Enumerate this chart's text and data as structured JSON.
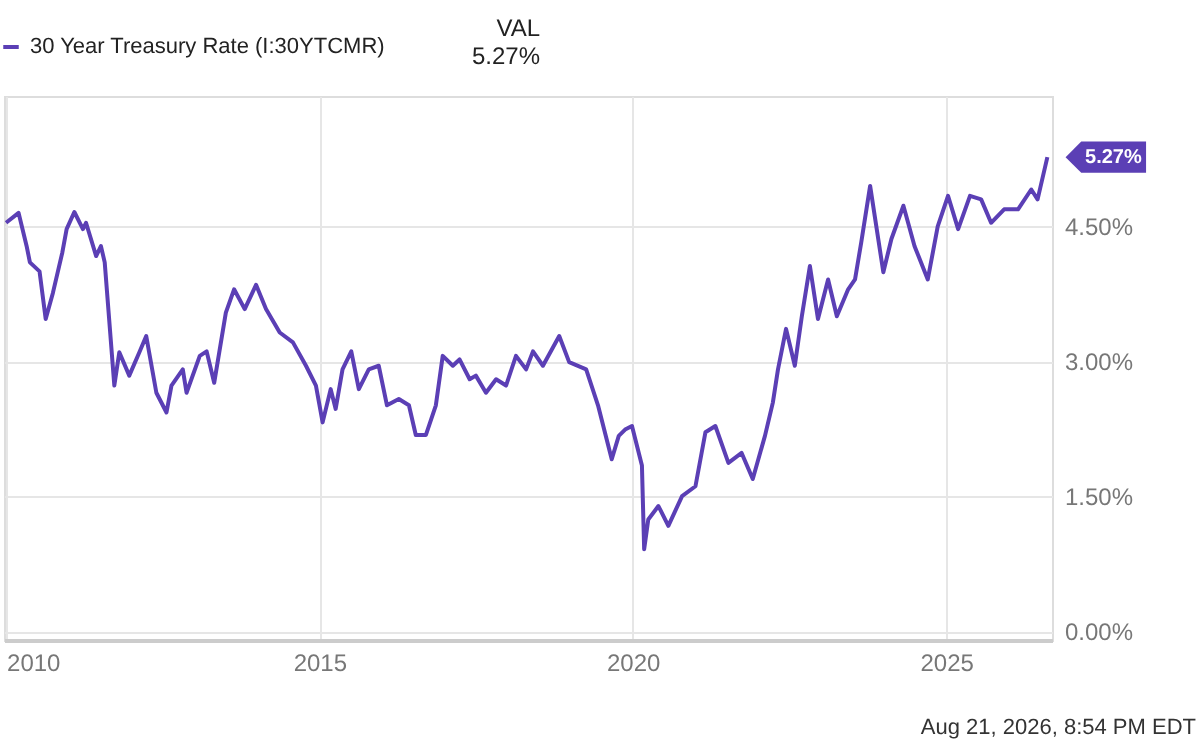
{
  "chart_data": {
    "type": "line",
    "x": [
      "2010-01-01",
      "2010-03-15",
      "2010-05-01",
      "2010-05-20",
      "2010-07-15",
      "2010-08-20",
      "2010-10-01",
      "2010-11-25",
      "2010-12-20",
      "2011-02-03",
      "2011-03-25",
      "2011-04-12",
      "2011-06-10",
      "2011-07-08",
      "2011-07-30",
      "2011-09-24",
      "2011-10-23",
      "2011-12-20",
      "2012-02-17",
      "2012-03-28",
      "2012-05-26",
      "2012-07-24",
      "2012-08-22",
      "2012-10-27",
      "2012-11-18",
      "2013-02-03",
      "2013-03-15",
      "2013-04-28",
      "2013-07-05",
      "2013-08-22",
      "2013-10-23",
      "2013-12-28",
      "2014-02-24",
      "2014-05-15",
      "2014-07-31",
      "2014-10-15",
      "2014-12-12",
      "2015-01-20",
      "2015-03-08",
      "2015-04-06",
      "2015-05-16",
      "2015-07-06",
      "2015-08-19",
      "2015-10-16",
      "2015-12-13",
      "2016-01-30",
      "2016-04-08",
      "2016-06-06",
      "2016-07-16",
      "2016-09-13",
      "2016-11-10",
      "2016-12-20",
      "2017-02-17",
      "2017-03-28",
      "2017-05-26",
      "2017-07-01",
      "2017-08-29",
      "2017-10-27",
      "2017-12-24",
      "2018-02-20",
      "2018-04-20",
      "2018-05-30",
      "2018-07-27",
      "2018-10-30",
      "2018-12-27",
      "2019-04-05",
      "2019-06-13",
      "2019-09-01",
      "2019-10-12",
      "2019-11-18",
      "2019-12-28",
      "2020-02-24",
      "2020-03-08",
      "2020-04-01",
      "2020-05-30",
      "2020-07-27",
      "2020-10-15",
      "2021-01-01",
      "2021-02-28",
      "2021-04-27",
      "2021-07-12",
      "2021-09-27",
      "2021-12-01",
      "2022-02-10",
      "2022-03-28",
      "2022-04-27",
      "2022-06-13",
      "2022-08-03",
      "2022-09-13",
      "2022-10-30",
      "2022-12-16",
      "2023-02-13",
      "2023-04-05",
      "2023-06-10",
      "2023-07-20",
      "2023-08-25",
      "2023-10-16",
      "2024-01-01",
      "2024-02-17",
      "2024-04-27",
      "2024-07-01",
      "2024-09-16",
      "2024-11-13",
      "2025-01-12",
      "2025-03-12",
      "2025-05-20",
      "2025-07-24",
      "2025-09-20",
      "2025-12-05",
      "2026-02-24",
      "2026-05-12",
      "2026-06-18",
      "2026-08-14"
    ],
    "series": [
      {
        "name": "30 Year Treasury Rate (I:30YTCMR)",
        "color": "#5b3fb5",
        "values": [
          4.54,
          4.65,
          4.28,
          4.1,
          4.0,
          3.47,
          3.76,
          4.21,
          4.47,
          4.66,
          4.47,
          4.54,
          4.17,
          4.28,
          4.1,
          2.73,
          3.1,
          2.84,
          3.1,
          3.28,
          2.65,
          2.43,
          2.73,
          2.91,
          2.65,
          3.06,
          3.11,
          2.76,
          3.54,
          3.8,
          3.58,
          3.85,
          3.58,
          3.32,
          3.21,
          2.95,
          2.73,
          2.32,
          2.69,
          2.47,
          2.91,
          3.11,
          2.69,
          2.91,
          2.95,
          2.51,
          2.58,
          2.51,
          2.18,
          2.18,
          2.51,
          3.06,
          2.95,
          3.02,
          2.8,
          2.84,
          2.65,
          2.8,
          2.73,
          3.06,
          2.91,
          3.11,
          2.95,
          3.28,
          2.99,
          2.91,
          2.51,
          1.91,
          2.17,
          2.24,
          2.28,
          1.84,
          0.91,
          1.24,
          1.39,
          1.17,
          1.5,
          1.61,
          2.21,
          2.28,
          1.87,
          1.98,
          1.69,
          2.17,
          2.54,
          2.91,
          3.36,
          2.95,
          3.5,
          4.06,
          3.47,
          3.91,
          3.5,
          3.8,
          3.91,
          4.32,
          4.95,
          3.99,
          4.36,
          4.73,
          4.28,
          3.91,
          4.5,
          4.84,
          4.47,
          4.84,
          4.8,
          4.54,
          4.69,
          4.69,
          4.91,
          4.8,
          5.27
        ]
      }
    ],
    "xlim": [
      "2009-12-20",
      "2026-09-10"
    ],
    "xticks": [
      {
        "value": "2010",
        "label": "2010"
      },
      {
        "value": "2015",
        "label": "2015"
      },
      {
        "value": "2020",
        "label": "2020"
      },
      {
        "value": "2025",
        "label": "2025"
      }
    ],
    "ylim": [
      -0.1,
      5.95
    ],
    "yticks": [
      {
        "value": 0,
        "label": "0.00%"
      },
      {
        "value": 1.5,
        "label": "1.50%"
      },
      {
        "value": 3,
        "label": "3.00%"
      },
      {
        "value": 4.5,
        "label": "4.50%"
      }
    ],
    "grid": true,
    "legend": "top left",
    "marker": "none",
    "line_style": "solid",
    "annotations": [
      "VAL",
      "5.27%",
      {
        "text": "5.27%",
        "x": "2026-08-14",
        "y": 5.27
      },
      "Aug 21, 2026, 8:54 PM EDT"
    ]
  }
}
